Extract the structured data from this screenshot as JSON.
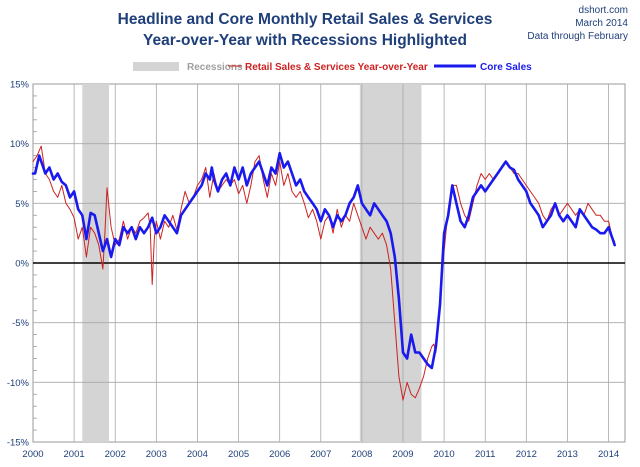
{
  "chart_data": {
    "type": "line",
    "title": "Headline and Core Monthly Retail Sales & Services",
    "subtitle": "Year-over-Year with Recessions Highlighted",
    "source": [
      "dshort.com",
      "March 2014",
      "Data through February"
    ],
    "xlabel": "",
    "ylabel": "",
    "xlim": [
      2000,
      2014.4
    ],
    "ylim": [
      -15,
      15
    ],
    "x_ticks": [
      "2000",
      "2001",
      "2002",
      "2003",
      "2004",
      "2005",
      "2006",
      "2007",
      "2008",
      "2009",
      "2010",
      "2011",
      "2012",
      "2013",
      "2014"
    ],
    "y_ticks": [
      "15%",
      "10%",
      "5%",
      "0%",
      "-5%",
      "-10%",
      "-15%"
    ],
    "grid": true,
    "legend": {
      "placement": "top",
      "items": [
        "Recessions",
        "Retail Sales & Services Year-over-Year",
        "Core Sales"
      ]
    },
    "colors": {
      "headline": "#cc2222",
      "core": "#1a1aee",
      "recession": "#d4d4d4",
      "text": "#1f3f7a"
    },
    "recessions": [
      {
        "start": 2001.2,
        "end": 2001.85
      },
      {
        "start": 2007.95,
        "end": 2009.45
      }
    ],
    "series": [
      {
        "name": "Retail Sales & Services Year-over-Year",
        "points": [
          [
            2000.0,
            8.5
          ],
          [
            2000.1,
            9.0
          ],
          [
            2000.2,
            9.8
          ],
          [
            2000.3,
            7.5
          ],
          [
            2000.4,
            7.0
          ],
          [
            2000.5,
            6.0
          ],
          [
            2000.6,
            5.5
          ],
          [
            2000.7,
            6.5
          ],
          [
            2000.8,
            5.0
          ],
          [
            2000.9,
            4.5
          ],
          [
            2001.0,
            3.8
          ],
          [
            2001.1,
            2.0
          ],
          [
            2001.2,
            3.0
          ],
          [
            2001.3,
            0.5
          ],
          [
            2001.4,
            3.0
          ],
          [
            2001.5,
            2.5
          ],
          [
            2001.6,
            1.5
          ],
          [
            2001.7,
            -0.5
          ],
          [
            2001.75,
            2.5
          ],
          [
            2001.8,
            6.3
          ],
          [
            2001.9,
            3.0
          ],
          [
            2002.0,
            1.5
          ],
          [
            2002.1,
            2.0
          ],
          [
            2002.2,
            3.5
          ],
          [
            2002.3,
            2.0
          ],
          [
            2002.4,
            3.0
          ],
          [
            2002.5,
            2.5
          ],
          [
            2002.6,
            3.5
          ],
          [
            2002.7,
            3.8
          ],
          [
            2002.8,
            4.2
          ],
          [
            2002.85,
            3.0
          ],
          [
            2002.9,
            -1.8
          ],
          [
            2002.95,
            2.0
          ],
          [
            2003.0,
            3.5
          ],
          [
            2003.1,
            2.0
          ],
          [
            2003.2,
            3.5
          ],
          [
            2003.3,
            3.0
          ],
          [
            2003.4,
            4.0
          ],
          [
            2003.5,
            2.8
          ],
          [
            2003.6,
            4.5
          ],
          [
            2003.7,
            6.0
          ],
          [
            2003.8,
            5.0
          ],
          [
            2003.9,
            5.5
          ],
          [
            2004.0,
            6.5
          ],
          [
            2004.1,
            7.0
          ],
          [
            2004.2,
            8.0
          ],
          [
            2004.3,
            5.5
          ],
          [
            2004.4,
            7.5
          ],
          [
            2004.5,
            6.0
          ],
          [
            2004.6,
            6.5
          ],
          [
            2004.7,
            7.0
          ],
          [
            2004.8,
            6.5
          ],
          [
            2004.9,
            7.0
          ],
          [
            2005.0,
            5.8
          ],
          [
            2005.1,
            6.5
          ],
          [
            2005.2,
            5.0
          ],
          [
            2005.3,
            6.5
          ],
          [
            2005.4,
            8.5
          ],
          [
            2005.5,
            9.0
          ],
          [
            2005.6,
            7.0
          ],
          [
            2005.7,
            5.5
          ],
          [
            2005.8,
            7.5
          ],
          [
            2005.9,
            6.5
          ],
          [
            2006.0,
            8.5
          ],
          [
            2006.1,
            6.5
          ],
          [
            2006.2,
            7.5
          ],
          [
            2006.3,
            6.0
          ],
          [
            2006.4,
            5.5
          ],
          [
            2006.5,
            6.0
          ],
          [
            2006.6,
            5.0
          ],
          [
            2006.7,
            3.8
          ],
          [
            2006.8,
            4.5
          ],
          [
            2006.9,
            3.5
          ],
          [
            2007.0,
            2.0
          ],
          [
            2007.1,
            3.5
          ],
          [
            2007.2,
            4.0
          ],
          [
            2007.3,
            2.5
          ],
          [
            2007.4,
            4.5
          ],
          [
            2007.5,
            3.0
          ],
          [
            2007.6,
            4.0
          ],
          [
            2007.7,
            3.5
          ],
          [
            2007.8,
            5.0
          ],
          [
            2007.9,
            4.0
          ],
          [
            2008.0,
            3.0
          ],
          [
            2008.1,
            2.0
          ],
          [
            2008.2,
            3.0
          ],
          [
            2008.3,
            2.5
          ],
          [
            2008.4,
            2.0
          ],
          [
            2008.5,
            2.5
          ],
          [
            2008.6,
            1.5
          ],
          [
            2008.7,
            -0.5
          ],
          [
            2008.8,
            -5.0
          ],
          [
            2008.9,
            -9.5
          ],
          [
            2009.0,
            -11.5
          ],
          [
            2009.1,
            -10.0
          ],
          [
            2009.2,
            -11.0
          ],
          [
            2009.3,
            -11.3
          ],
          [
            2009.4,
            -10.5
          ],
          [
            2009.5,
            -9.5
          ],
          [
            2009.6,
            -8.0
          ],
          [
            2009.7,
            -7.0
          ],
          [
            2009.75,
            -6.8
          ],
          [
            2009.8,
            -7.5
          ],
          [
            2009.9,
            -3.0
          ],
          [
            2010.0,
            1.0
          ],
          [
            2010.1,
            4.5
          ],
          [
            2010.2,
            6.5
          ],
          [
            2010.3,
            6.5
          ],
          [
            2010.4,
            5.0
          ],
          [
            2010.5,
            4.0
          ],
          [
            2010.6,
            3.5
          ],
          [
            2010.7,
            5.0
          ],
          [
            2010.8,
            6.5
          ],
          [
            2010.9,
            7.5
          ],
          [
            2011.0,
            7.0
          ],
          [
            2011.1,
            7.5
          ],
          [
            2011.2,
            7.0
          ],
          [
            2011.3,
            7.5
          ],
          [
            2011.4,
            8.0
          ],
          [
            2011.5,
            8.5
          ],
          [
            2011.6,
            8.0
          ],
          [
            2011.7,
            7.5
          ],
          [
            2011.8,
            7.5
          ],
          [
            2011.9,
            7.0
          ],
          [
            2012.0,
            6.5
          ],
          [
            2012.1,
            6.0
          ],
          [
            2012.2,
            5.5
          ],
          [
            2012.3,
            5.0
          ],
          [
            2012.4,
            4.0
          ],
          [
            2012.5,
            3.5
          ],
          [
            2012.6,
            4.5
          ],
          [
            2012.7,
            5.0
          ],
          [
            2012.8,
            4.0
          ],
          [
            2012.9,
            4.5
          ],
          [
            2013.0,
            5.0
          ],
          [
            2013.1,
            4.5
          ],
          [
            2013.2,
            4.0
          ],
          [
            2013.3,
            4.5
          ],
          [
            2013.4,
            4.0
          ],
          [
            2013.5,
            5.0
          ],
          [
            2013.6,
            4.5
          ],
          [
            2013.7,
            4.0
          ],
          [
            2013.8,
            4.0
          ],
          [
            2013.9,
            3.5
          ],
          [
            2014.0,
            3.5
          ],
          [
            2014.1,
            2.0
          ],
          [
            2014.15,
            1.8
          ]
        ]
      },
      {
        "name": "Core Sales",
        "points": [
          [
            2000.0,
            7.5
          ],
          [
            2000.05,
            7.5
          ],
          [
            2000.15,
            9.0
          ],
          [
            2000.25,
            8.0
          ],
          [
            2000.3,
            7.5
          ],
          [
            2000.4,
            8.0
          ],
          [
            2000.5,
            7.0
          ],
          [
            2000.6,
            7.5
          ],
          [
            2000.7,
            6.8
          ],
          [
            2000.8,
            6.5
          ],
          [
            2000.9,
            5.5
          ],
          [
            2001.0,
            6.0
          ],
          [
            2001.1,
            4.5
          ],
          [
            2001.2,
            4.0
          ],
          [
            2001.3,
            2.0
          ],
          [
            2001.4,
            4.2
          ],
          [
            2001.5,
            4.0
          ],
          [
            2001.6,
            2.5
          ],
          [
            2001.7,
            1.0
          ],
          [
            2001.8,
            2.0
          ],
          [
            2001.9,
            0.5
          ],
          [
            2002.0,
            2.0
          ],
          [
            2002.1,
            1.5
          ],
          [
            2002.2,
            3.0
          ],
          [
            2002.3,
            2.5
          ],
          [
            2002.4,
            3.0
          ],
          [
            2002.5,
            2.0
          ],
          [
            2002.6,
            3.0
          ],
          [
            2002.7,
            2.5
          ],
          [
            2002.8,
            3.0
          ],
          [
            2002.9,
            3.8
          ],
          [
            2003.0,
            2.5
          ],
          [
            2003.1,
            3.0
          ],
          [
            2003.2,
            4.0
          ],
          [
            2003.3,
            3.5
          ],
          [
            2003.4,
            3.0
          ],
          [
            2003.5,
            2.5
          ],
          [
            2003.6,
            4.0
          ],
          [
            2003.7,
            4.5
          ],
          [
            2003.8,
            5.0
          ],
          [
            2003.9,
            5.5
          ],
          [
            2004.0,
            6.0
          ],
          [
            2004.1,
            6.5
          ],
          [
            2004.2,
            7.5
          ],
          [
            2004.3,
            7.0
          ],
          [
            2004.35,
            8.0
          ],
          [
            2004.4,
            7.0
          ],
          [
            2004.5,
            6.0
          ],
          [
            2004.6,
            7.0
          ],
          [
            2004.7,
            7.5
          ],
          [
            2004.8,
            6.5
          ],
          [
            2004.9,
            8.0
          ],
          [
            2005.0,
            7.0
          ],
          [
            2005.1,
            8.0
          ],
          [
            2005.2,
            6.5
          ],
          [
            2005.3,
            7.5
          ],
          [
            2005.4,
            8.0
          ],
          [
            2005.5,
            8.5
          ],
          [
            2005.6,
            7.5
          ],
          [
            2005.7,
            6.5
          ],
          [
            2005.8,
            8.0
          ],
          [
            2005.9,
            7.5
          ],
          [
            2006.0,
            9.2
          ],
          [
            2006.1,
            8.0
          ],
          [
            2006.2,
            8.5
          ],
          [
            2006.3,
            7.5
          ],
          [
            2006.4,
            6.5
          ],
          [
            2006.5,
            7.0
          ],
          [
            2006.6,
            6.0
          ],
          [
            2006.7,
            5.5
          ],
          [
            2006.8,
            5.0
          ],
          [
            2006.9,
            4.5
          ],
          [
            2007.0,
            3.5
          ],
          [
            2007.1,
            4.5
          ],
          [
            2007.2,
            4.0
          ],
          [
            2007.3,
            3.0
          ],
          [
            2007.4,
            4.0
          ],
          [
            2007.5,
            3.5
          ],
          [
            2007.6,
            4.0
          ],
          [
            2007.7,
            5.0
          ],
          [
            2007.8,
            5.5
          ],
          [
            2007.9,
            6.5
          ],
          [
            2008.0,
            5.0
          ],
          [
            2008.1,
            4.5
          ],
          [
            2008.2,
            4.0
          ],
          [
            2008.3,
            5.0
          ],
          [
            2008.4,
            4.5
          ],
          [
            2008.5,
            4.0
          ],
          [
            2008.6,
            3.5
          ],
          [
            2008.7,
            2.5
          ],
          [
            2008.8,
            0.5
          ],
          [
            2008.9,
            -3.0
          ],
          [
            2009.0,
            -7.5
          ],
          [
            2009.1,
            -8.0
          ],
          [
            2009.2,
            -6.0
          ],
          [
            2009.3,
            -7.5
          ],
          [
            2009.4,
            -7.5
          ],
          [
            2009.5,
            -8.0
          ],
          [
            2009.6,
            -8.5
          ],
          [
            2009.7,
            -8.8
          ],
          [
            2009.8,
            -7.0
          ],
          [
            2009.9,
            -3.5
          ],
          [
            2010.0,
            2.5
          ],
          [
            2010.1,
            4.0
          ],
          [
            2010.2,
            6.5
          ],
          [
            2010.3,
            5.0
          ],
          [
            2010.4,
            3.5
          ],
          [
            2010.5,
            3.0
          ],
          [
            2010.6,
            4.0
          ],
          [
            2010.7,
            5.5
          ],
          [
            2010.8,
            6.0
          ],
          [
            2010.9,
            6.5
          ],
          [
            2011.0,
            6.0
          ],
          [
            2011.1,
            6.5
          ],
          [
            2011.2,
            7.0
          ],
          [
            2011.3,
            7.5
          ],
          [
            2011.4,
            8.0
          ],
          [
            2011.5,
            8.5
          ],
          [
            2011.6,
            8.0
          ],
          [
            2011.7,
            7.8
          ],
          [
            2011.8,
            7.0
          ],
          [
            2011.9,
            6.5
          ],
          [
            2012.0,
            6.0
          ],
          [
            2012.1,
            5.0
          ],
          [
            2012.2,
            4.5
          ],
          [
            2012.3,
            4.0
          ],
          [
            2012.4,
            3.0
          ],
          [
            2012.5,
            3.5
          ],
          [
            2012.6,
            4.0
          ],
          [
            2012.7,
            5.0
          ],
          [
            2012.8,
            4.0
          ],
          [
            2012.9,
            3.5
          ],
          [
            2013.0,
            4.0
          ],
          [
            2013.1,
            3.5
          ],
          [
            2013.2,
            3.0
          ],
          [
            2013.3,
            4.5
          ],
          [
            2013.4,
            4.0
          ],
          [
            2013.5,
            3.5
          ],
          [
            2013.6,
            3.0
          ],
          [
            2013.7,
            2.8
          ],
          [
            2013.8,
            2.5
          ],
          [
            2013.9,
            2.5
          ],
          [
            2014.0,
            3.0
          ],
          [
            2014.05,
            2.5
          ],
          [
            2014.1,
            2.0
          ],
          [
            2014.15,
            1.5
          ]
        ]
      }
    ]
  }
}
